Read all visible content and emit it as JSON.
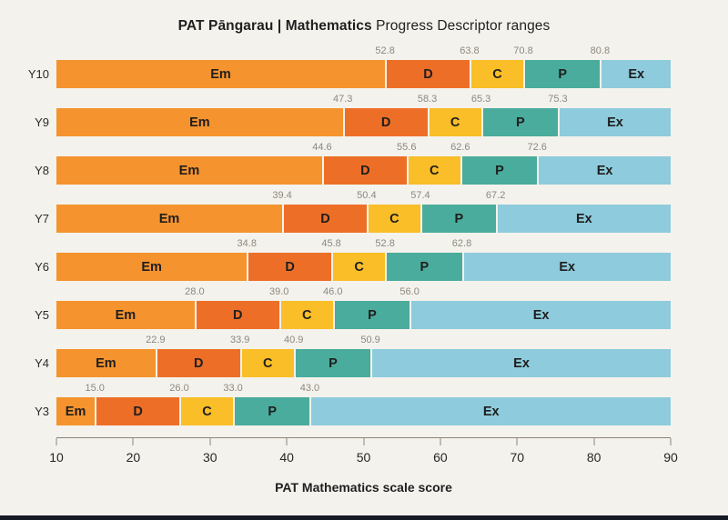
{
  "title": {
    "bold": "PAT Pāngarau | Mathematics",
    "regular": " Progress Descriptor ranges"
  },
  "colors": {
    "background": "#F4F2EC",
    "value_label": "#8C8880",
    "axis": "#8B857B",
    "footer_bar": "#151A23"
  },
  "chart_data": {
    "type": "bar",
    "orientation": "horizontal-stacked",
    "title": "PAT Pāngarau | Mathematics Progress Descriptor ranges",
    "xlabel": "PAT Mathematics scale score",
    "xlim": [
      10,
      90
    ],
    "x_ticks": [
      10,
      20,
      30,
      40,
      50,
      60,
      70,
      80,
      90
    ],
    "segments": [
      "Em",
      "D",
      "C",
      "P",
      "Ex"
    ],
    "segment_colors": {
      "Em": "#F5932E",
      "D": "#ED6F27",
      "C": "#F9BE28",
      "P": "#4AAC9C",
      "Ex": "#8ECBDC"
    },
    "rows": [
      {
        "label": "Y10",
        "breakpoints": [
          52.8,
          63.8,
          70.8,
          80.8
        ]
      },
      {
        "label": "Y9",
        "breakpoints": [
          47.3,
          58.3,
          65.3,
          75.3
        ]
      },
      {
        "label": "Y8",
        "breakpoints": [
          44.6,
          55.6,
          62.6,
          72.6
        ]
      },
      {
        "label": "Y7",
        "breakpoints": [
          39.4,
          50.4,
          57.4,
          67.2
        ]
      },
      {
        "label": "Y6",
        "breakpoints": [
          34.8,
          45.8,
          52.8,
          62.8
        ]
      },
      {
        "label": "Y5",
        "breakpoints": [
          28.0,
          39.0,
          46.0,
          56.0
        ]
      },
      {
        "label": "Y4",
        "breakpoints": [
          22.9,
          33.9,
          40.9,
          50.9
        ]
      },
      {
        "label": "Y3",
        "breakpoints": [
          15.0,
          26.0,
          33.0,
          43.0
        ]
      }
    ]
  }
}
